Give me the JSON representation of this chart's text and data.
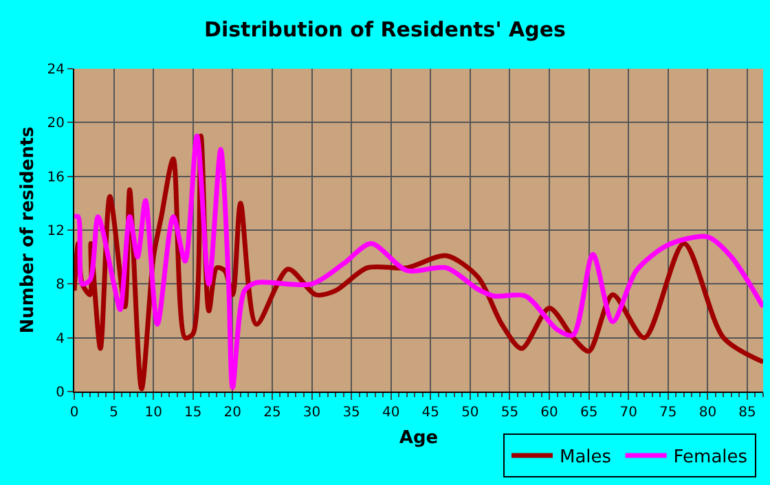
{
  "chart_data": {
    "type": "line",
    "title": "Distribution of Residents' Ages",
    "xlabel": "Age",
    "ylabel": "Number of residents",
    "xlim": [
      0,
      87
    ],
    "xticks": [
      0,
      5,
      10,
      15,
      20,
      25,
      30,
      35,
      40,
      45,
      50,
      55,
      60,
      65,
      70,
      75,
      80,
      85
    ],
    "ylim": [
      0,
      24
    ],
    "yticks": [
      0,
      4,
      8,
      12,
      16,
      20,
      24
    ],
    "grid": true,
    "legend": "bottom right",
    "marker": "none",
    "line_style": "solid",
    "series": [
      {
        "name": "Males",
        "color": "#a00000",
        "x": [
          0,
          0.5,
          1,
          2,
          2.1,
          3.3,
          4.5,
          6.4,
          7,
          8.5,
          10,
          11,
          12.5,
          14,
          15,
          16,
          17,
          18,
          19,
          20,
          21,
          23,
          27,
          30.5,
          33,
          37,
          42,
          47,
          51,
          54,
          56.5,
          60,
          63,
          65,
          68,
          72,
          77,
          82,
          87
        ],
        "values": [
          7.5,
          11,
          8,
          7.2,
          11,
          3.2,
          14.5,
          6.3,
          15,
          0.2,
          10,
          13,
          17.3,
          4,
          4.3,
          19,
          6,
          9.2,
          9,
          7.2,
          14,
          5,
          9.1,
          7.2,
          7.5,
          9.2,
          9.2,
          10.1,
          8.5,
          5,
          3.2,
          6.2,
          4,
          3,
          7.2,
          4,
          11,
          4,
          2.2
        ]
      },
      {
        "name": "Females",
        "color": "#ff00ff",
        "x": [
          0,
          0.5,
          1,
          2,
          3,
          5,
          5.8,
          7,
          8,
          9,
          10.5,
          12.5,
          14,
          15.5,
          17,
          18.5,
          19.5,
          20,
          21.5,
          23,
          30,
          34,
          37.5,
          42,
          47,
          51,
          53,
          57,
          61,
          63,
          65.5,
          68,
          71,
          75,
          80,
          83,
          87
        ],
        "values": [
          13,
          13,
          8,
          8.3,
          13,
          8,
          6.1,
          13,
          10,
          14.2,
          5,
          13,
          9.7,
          19,
          8,
          18,
          8,
          0.3,
          7.5,
          8.1,
          8,
          9.5,
          11,
          9,
          9.2,
          7.6,
          7.1,
          7.1,
          4.6,
          4.2,
          10.2,
          5.2,
          9,
          10.9,
          11.5,
          10,
          6.3
        ]
      }
    ]
  }
}
